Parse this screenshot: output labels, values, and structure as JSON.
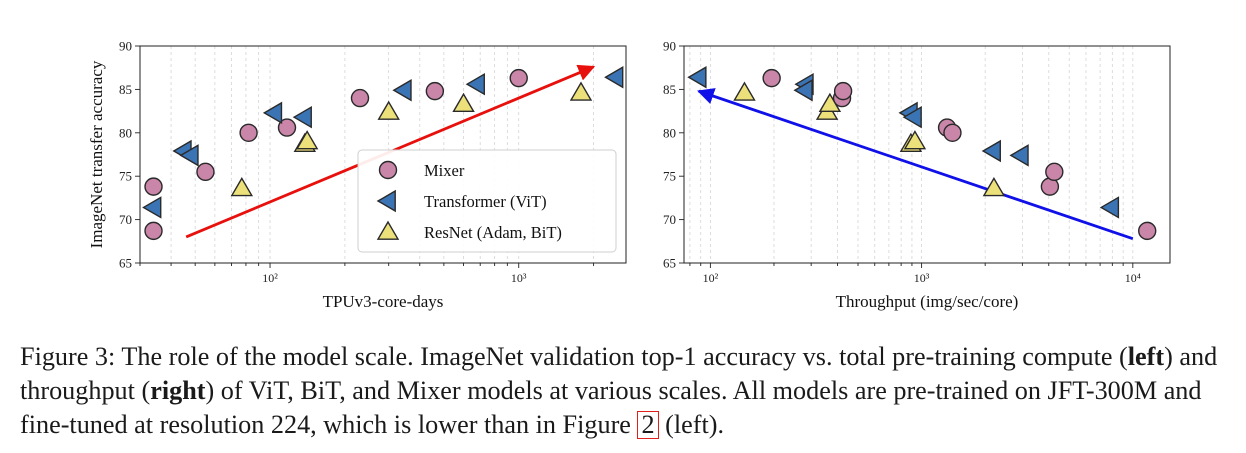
{
  "caption": {
    "label": "Figure 3:",
    "text_1": "The role of the model scale. ImageNet validation top-1 accuracy vs. total pre-training compute (",
    "bold_1": "left",
    "text_2": ") and throughput (",
    "bold_2": "right",
    "text_3": ") of ViT, BiT, and Mixer models at various scales. All models are pre-trained on JFT-300M and fine-tuned at resolution 224, which is lower than in Figure ",
    "figref": "2",
    "text_4": " (left)."
  },
  "legend": {
    "placement": "lower-right of left panel",
    "entries": [
      {
        "label": "Mixer",
        "marker": "circle",
        "color": "#c986a8"
      },
      {
        "label": "Transformer (ViT)",
        "marker": "triangle-left",
        "color": "#3b74b4"
      },
      {
        "label": "ResNet (Adam, BiT)",
        "marker": "triangle-up",
        "color": "#ebe07a"
      }
    ]
  },
  "chart_data": [
    {
      "type": "scatter",
      "xlabel": "TPUv3-core-days",
      "ylabel": "ImageNet transfer accuracy",
      "xscale": "log",
      "xlim": [
        30,
        2700
      ],
      "ylim": [
        65,
        90
      ],
      "x_ticks": [
        {
          "value": 100,
          "label": "10²"
        },
        {
          "value": 1000,
          "label": "10³"
        }
      ],
      "y_ticks": [
        65,
        70,
        75,
        80,
        85,
        90
      ],
      "grid": "x-minor dashed",
      "arrow": {
        "from": [
          46,
          68
        ],
        "to": [
          2000,
          87.6
        ],
        "color": "#e8100c"
      },
      "series": [
        {
          "name": "Mixer",
          "marker": "circle",
          "color": "#c986a8",
          "points": [
            [
              34,
              68.7
            ],
            [
              34,
              73.8
            ],
            [
              55,
              75.5
            ],
            [
              82,
              80.0
            ],
            [
              117,
              80.6
            ],
            [
              230,
              84.0
            ],
            [
              460,
              84.8
            ],
            [
              1000,
              86.3
            ]
          ]
        },
        {
          "name": "Transformer (ViT)",
          "marker": "triangle-left",
          "color": "#3b74b4",
          "points": [
            [
              34,
              71.4
            ],
            [
              45,
              77.9
            ],
            [
              48,
              77.4
            ],
            [
              104,
              82.3
            ],
            [
              137,
              81.8
            ],
            [
              345,
              84.9
            ],
            [
              680,
              85.6
            ],
            [
              2450,
              86.4
            ]
          ]
        },
        {
          "name": "ResNet (Adam, BiT)",
          "marker": "triangle-up",
          "color": "#ebe07a",
          "points": [
            [
              77,
              73.6
            ],
            [
              138,
              78.7
            ],
            [
              141,
              79.0
            ],
            [
              300,
              82.4
            ],
            [
              600,
              83.3
            ],
            [
              1780,
              84.6
            ]
          ]
        }
      ]
    },
    {
      "type": "scatter",
      "xlabel": "Throughput (img/sec/core)",
      "ylabel": "",
      "xscale": "log",
      "xlim": [
        75,
        15000
      ],
      "ylim": [
        65,
        90
      ],
      "x_ticks": [
        {
          "value": 100,
          "label": "10²"
        },
        {
          "value": 1000,
          "label": "10³"
        },
        {
          "value": 10000,
          "label": "10⁴"
        }
      ],
      "y_ticks": [
        65,
        70,
        75,
        80,
        85,
        90
      ],
      "grid": "x-minor dashed",
      "arrow": {
        "from": [
          10000,
          67.8
        ],
        "to": [
          88,
          84.8
        ],
        "color": "#1010e8"
      },
      "series": [
        {
          "name": "Mixer",
          "marker": "circle",
          "color": "#c986a8",
          "points": [
            [
              195,
              86.3
            ],
            [
              420,
              84.0
            ],
            [
              425,
              84.8
            ],
            [
              1320,
              80.6
            ],
            [
              1400,
              80.0
            ],
            [
              4050,
              73.8
            ],
            [
              4250,
              75.5
            ],
            [
              11700,
              68.7
            ]
          ]
        },
        {
          "name": "Transformer (ViT)",
          "marker": "triangle-left",
          "color": "#3b74b4",
          "points": [
            [
              88,
              86.4
            ],
            [
              283,
              85.6
            ],
            [
              280,
              84.9
            ],
            [
              880,
              82.3
            ],
            [
              920,
              81.8
            ],
            [
              2180,
              77.9
            ],
            [
              2950,
              77.4
            ],
            [
              7900,
              71.4
            ]
          ]
        },
        {
          "name": "ResNet (Adam, BiT)",
          "marker": "triangle-up",
          "color": "#ebe07a",
          "points": [
            [
              145,
              84.6
            ],
            [
              357,
              82.4
            ],
            [
              368,
              83.3
            ],
            [
              890,
              78.7
            ],
            [
              930,
              79.0
            ],
            [
              2200,
              73.6
            ]
          ]
        }
      ]
    }
  ]
}
